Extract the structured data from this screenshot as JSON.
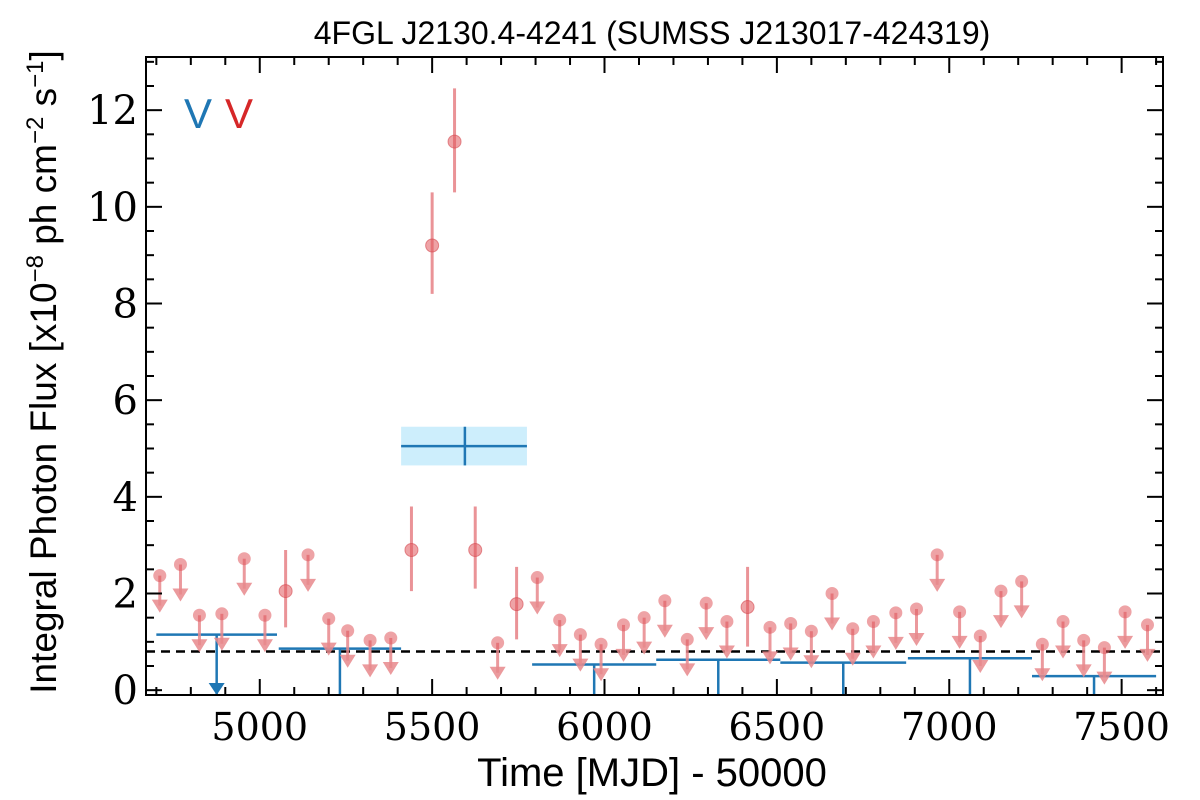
{
  "chart_data": {
    "type": "scatter",
    "title": "4FGL J2130.4-4241 (SUMSS J213017-424319)",
    "xlabel": "Time [MJD] - 50000",
    "ylabel": "Integral Photon Flux [x10$^{-8}$ ph cm$^{-2}$ s$^{-1}$]",
    "ylabel_parts": {
      "main": "Integral Photon Flux [x10",
      "exp1": "−8",
      "mid": " ph cm",
      "exp2": "−2",
      "mid2": " s",
      "exp3": "−1",
      "end": "]"
    },
    "xlim": [
      4670,
      7620
    ],
    "ylim": [
      -0.1,
      13.1
    ],
    "xticks": [
      5000,
      5500,
      6000,
      6500,
      7000,
      7500
    ],
    "yticks": [
      0,
      2,
      4,
      6,
      8,
      10,
      12
    ],
    "xtick_labels": [
      "5000",
      "5500",
      "6000",
      "6500",
      "7000",
      "7500"
    ],
    "ytick_labels": [
      "0",
      "2",
      "4",
      "6",
      "8",
      "10",
      "12"
    ],
    "legend_markers": [
      {
        "label": "V",
        "color": "#1f77b4"
      },
      {
        "label": "V",
        "color": "#d62728"
      }
    ],
    "reference_line": {
      "y": 0.8,
      "style": "dashed",
      "color": "#000000"
    },
    "colors": {
      "blue": "#1f77b4",
      "red": "#e8888c",
      "band": "#cdeefc"
    },
    "series": [
      {
        "kind": "short_bins",
        "detections": [
          {
            "x": 5075,
            "y": 2.05,
            "lo": 1.3,
            "hi": 2.9
          },
          {
            "x": 5440,
            "y": 2.9,
            "lo": 2.05,
            "hi": 3.8
          },
          {
            "x": 5500,
            "y": 9.2,
            "lo": 8.2,
            "hi": 10.3
          },
          {
            "x": 5565,
            "y": 11.35,
            "lo": 10.3,
            "hi": 12.45
          },
          {
            "x": 5625,
            "y": 2.9,
            "lo": 2.1,
            "hi": 3.8
          },
          {
            "x": 5745,
            "y": 1.78,
            "lo": 1.05,
            "hi": 2.55
          },
          {
            "x": 6415,
            "y": 1.72,
            "lo": 0.9,
            "hi": 2.55
          }
        ],
        "upper_limits": [
          {
            "x": 4710,
            "y": 2.37
          },
          {
            "x": 4770,
            "y": 2.6
          },
          {
            "x": 4825,
            "y": 1.55
          },
          {
            "x": 4890,
            "y": 1.58
          },
          {
            "x": 4955,
            "y": 2.72
          },
          {
            "x": 5015,
            "y": 1.55
          },
          {
            "x": 5140,
            "y": 2.8
          },
          {
            "x": 5200,
            "y": 1.48
          },
          {
            "x": 5255,
            "y": 1.23
          },
          {
            "x": 5320,
            "y": 1.03
          },
          {
            "x": 5380,
            "y": 1.08
          },
          {
            "x": 5690,
            "y": 0.98
          },
          {
            "x": 5805,
            "y": 2.33
          },
          {
            "x": 5870,
            "y": 1.45
          },
          {
            "x": 5930,
            "y": 1.15
          },
          {
            "x": 5990,
            "y": 0.95
          },
          {
            "x": 6055,
            "y": 1.35
          },
          {
            "x": 6115,
            "y": 1.5
          },
          {
            "x": 6175,
            "y": 1.85
          },
          {
            "x": 6240,
            "y": 1.05
          },
          {
            "x": 6295,
            "y": 1.8
          },
          {
            "x": 6355,
            "y": 1.42
          },
          {
            "x": 6480,
            "y": 1.3
          },
          {
            "x": 6540,
            "y": 1.38
          },
          {
            "x": 6600,
            "y": 1.22
          },
          {
            "x": 6660,
            "y": 2.0
          },
          {
            "x": 6720,
            "y": 1.27
          },
          {
            "x": 6780,
            "y": 1.42
          },
          {
            "x": 6845,
            "y": 1.6
          },
          {
            "x": 6905,
            "y": 1.68
          },
          {
            "x": 6965,
            "y": 2.8
          },
          {
            "x": 7030,
            "y": 1.62
          },
          {
            "x": 7090,
            "y": 1.12
          },
          {
            "x": 7150,
            "y": 2.05
          },
          {
            "x": 7210,
            "y": 2.25
          },
          {
            "x": 7270,
            "y": 0.95
          },
          {
            "x": 7330,
            "y": 1.42
          },
          {
            "x": 7390,
            "y": 1.03
          },
          {
            "x": 7450,
            "y": 0.88
          },
          {
            "x": 7510,
            "y": 1.62
          },
          {
            "x": 7575,
            "y": 1.35
          }
        ]
      },
      {
        "kind": "long_bins",
        "detections": [
          {
            "x0": 5410,
            "x1": 5775,
            "x": 5595,
            "y": 5.05,
            "lo": 4.65,
            "hi": 5.45
          }
        ],
        "upper_limits": [
          {
            "x0": 4700,
            "x1": 5050,
            "y": 1.15
          },
          {
            "x0": 5055,
            "x1": 5410,
            "y": 0.86
          },
          {
            "x0": 5790,
            "x1": 6150,
            "y": 0.53
          },
          {
            "x0": 6150,
            "x1": 6510,
            "y": 0.63
          },
          {
            "x0": 6510,
            "x1": 6875,
            "y": 0.57
          },
          {
            "x0": 6880,
            "x1": 7240,
            "y": 0.66
          },
          {
            "x0": 7240,
            "x1": 7600,
            "y": 0.29
          }
        ]
      }
    ]
  }
}
